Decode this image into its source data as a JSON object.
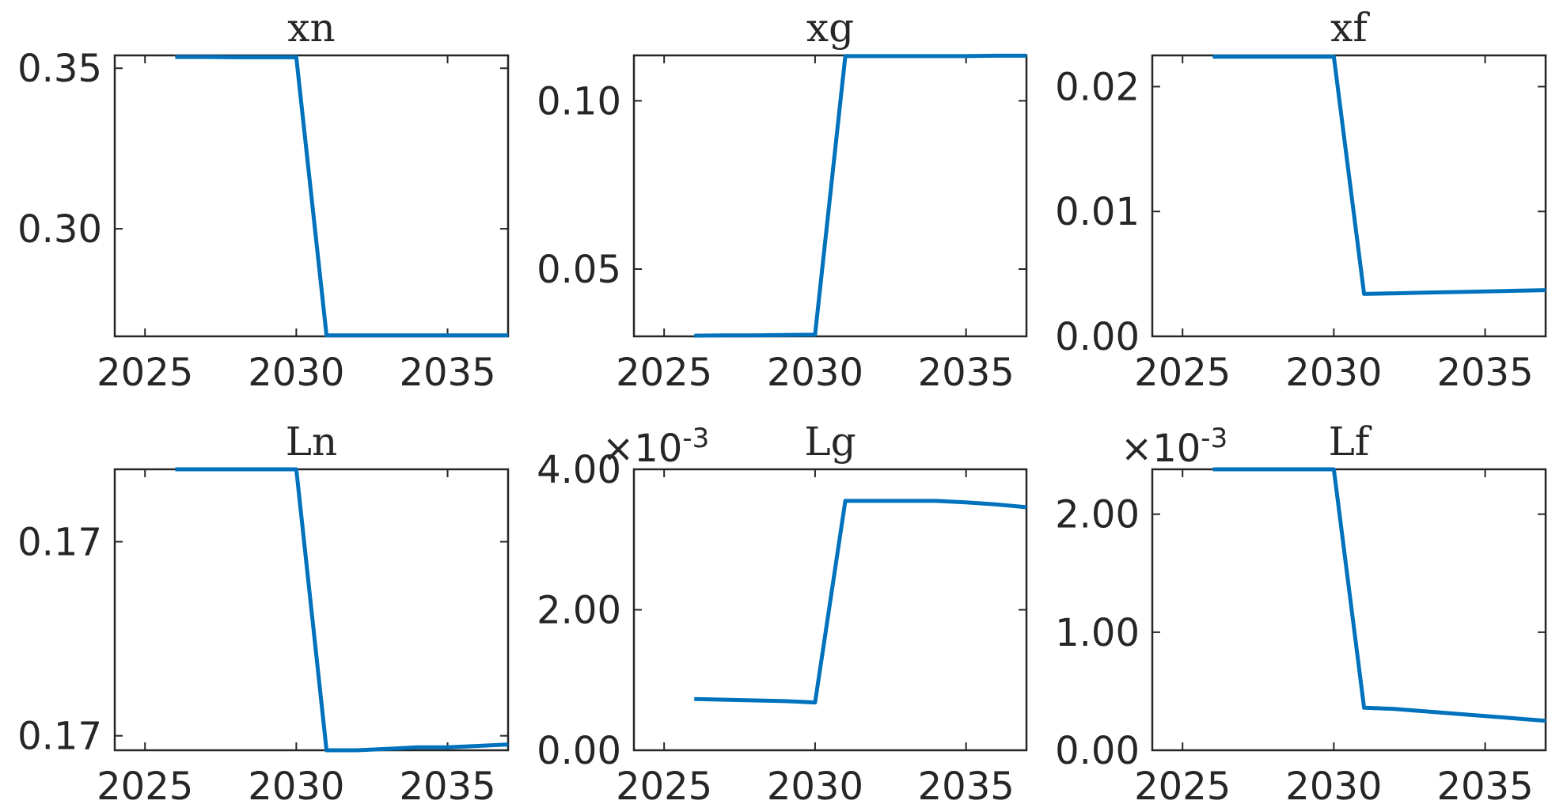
{
  "colors": {
    "series": "#0072bd",
    "axes": "#262626"
  },
  "chart_data": [
    {
      "type": "line",
      "title": "xn",
      "multiplier": "",
      "x": [
        2026,
        2027,
        2028,
        2029,
        2030,
        2031,
        2032,
        2033,
        2034,
        2035,
        2036,
        2037
      ],
      "xlim": [
        2024,
        2037
      ],
      "xticks": [
        2025,
        2030,
        2035
      ],
      "xtick_labels": [
        "2025",
        "2030",
        "2035"
      ],
      "ylim": [
        0.2665,
        0.354
      ],
      "yticks": [
        0.3,
        0.35
      ],
      "ytick_labels": [
        "0.30",
        "0.35"
      ],
      "series": [
        {
          "values": [
            0.3535,
            0.3535,
            0.3534,
            0.3534,
            0.3534,
            0.2668,
            0.2668,
            0.2668,
            0.2668,
            0.2668,
            0.2668,
            0.2668
          ]
        }
      ]
    },
    {
      "type": "line",
      "title": "xg",
      "multiplier": "",
      "x": [
        2026,
        2027,
        2028,
        2029,
        2030,
        2031,
        2032,
        2033,
        2034,
        2035,
        2036,
        2037
      ],
      "xlim": [
        2024,
        2037
      ],
      "xticks": [
        2025,
        2030,
        2035
      ],
      "xtick_labels": [
        "2025",
        "2030",
        "2035"
      ],
      "ylim": [
        0.03,
        0.1135
      ],
      "yticks": [
        0.05,
        0.1
      ],
      "ytick_labels": [
        "0.05",
        "0.10"
      ],
      "series": [
        {
          "values": [
            0.0302,
            0.0303,
            0.0303,
            0.0304,
            0.0305,
            0.1133,
            0.1133,
            0.1133,
            0.1133,
            0.1133,
            0.1134,
            0.1134
          ]
        }
      ]
    },
    {
      "type": "line",
      "title": "xf",
      "multiplier": "",
      "x": [
        2026,
        2027,
        2028,
        2029,
        2030,
        2031,
        2032,
        2033,
        2034,
        2035,
        2036,
        2037
      ],
      "xlim": [
        2024,
        2037
      ],
      "xticks": [
        2025,
        2030,
        2035
      ],
      "xtick_labels": [
        "2025",
        "2030",
        "2035"
      ],
      "ylim": [
        0.0,
        0.0225
      ],
      "yticks": [
        0.0,
        0.01,
        0.02
      ],
      "ytick_labels": [
        "0.00",
        "0.01",
        "0.02"
      ],
      "series": [
        {
          "values": [
            0.0224,
            0.0224,
            0.0224,
            0.0224,
            0.0224,
            0.0034,
            0.00345,
            0.0035,
            0.00355,
            0.0036,
            0.00365,
            0.0037
          ]
        }
      ]
    },
    {
      "type": "line",
      "title": "Ln",
      "multiplier": "",
      "x": [
        2026,
        2027,
        2028,
        2029,
        2030,
        2031,
        2032,
        2033,
        2034,
        2035,
        2036,
        2037
      ],
      "xlim": [
        2024,
        2037
      ],
      "xticks": [
        2025,
        2030,
        2035
      ],
      "xtick_labels": [
        "2025",
        "2030",
        "2035"
      ],
      "ylim": [
        0.1655,
        0.1752
      ],
      "yticks": [
        0.166,
        0.1727
      ],
      "ytick_labels": [
        "0.17",
        "0.17"
      ],
      "series": [
        {
          "values": [
            0.1752,
            0.1752,
            0.1752,
            0.1752,
            0.1752,
            0.1655,
            0.1655,
            0.16555,
            0.1656,
            0.1656,
            0.16565,
            0.1657
          ]
        }
      ]
    },
    {
      "type": "line",
      "title": "Lg",
      "multiplier": "×10-3",
      "x": [
        2026,
        2027,
        2028,
        2029,
        2030,
        2031,
        2032,
        2033,
        2034,
        2035,
        2036,
        2037
      ],
      "xlim": [
        2024,
        2037
      ],
      "xticks": [
        2025,
        2030,
        2035
      ],
      "xtick_labels": [
        "2025",
        "2030",
        "2035"
      ],
      "ylim": [
        0.0,
        4.0
      ],
      "yticks": [
        0.0,
        2.0,
        4.0
      ],
      "ytick_labels": [
        "0.00",
        "2.00",
        "4.00"
      ],
      "series": [
        {
          "values": [
            0.73,
            0.72,
            0.71,
            0.7,
            0.68,
            3.55,
            3.55,
            3.55,
            3.55,
            3.53,
            3.5,
            3.46
          ]
        }
      ]
    },
    {
      "type": "line",
      "title": "Lf",
      "multiplier": "×10-3",
      "x": [
        2026,
        2027,
        2028,
        2029,
        2030,
        2031,
        2032,
        2033,
        2034,
        2035,
        2036,
        2037
      ],
      "xlim": [
        2024,
        2037
      ],
      "xticks": [
        2025,
        2030,
        2035
      ],
      "xtick_labels": [
        "2025",
        "2030",
        "2035"
      ],
      "ylim": [
        0.0,
        2.38
      ],
      "yticks": [
        0.0,
        1.0,
        2.0
      ],
      "ytick_labels": [
        "0.00",
        "1.00",
        "2.00"
      ],
      "series": [
        {
          "values": [
            2.38,
            2.38,
            2.38,
            2.38,
            2.38,
            0.36,
            0.35,
            0.33,
            0.31,
            0.29,
            0.27,
            0.25
          ]
        }
      ]
    }
  ]
}
